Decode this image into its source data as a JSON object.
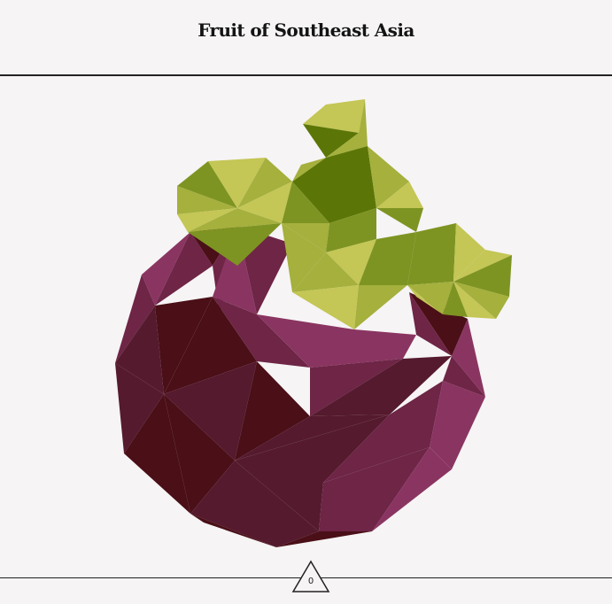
{
  "header": {
    "title": "Fruit of Southeast Asia"
  },
  "illustration": {
    "subject": "mangosteen",
    "colors": {
      "purple_light": "#8a3561",
      "purple_mid": "#6e2546",
      "purple_dark": "#551a2e",
      "maroon": "#4a0f17",
      "leaf_yellow": "#c4c655",
      "leaf_light": "#a5b03d",
      "leaf_mid": "#7e9422",
      "leaf_dark": "#5b7606"
    }
  },
  "footer": {
    "page_number": "0",
    "marker_icon": "triangle-icon"
  }
}
